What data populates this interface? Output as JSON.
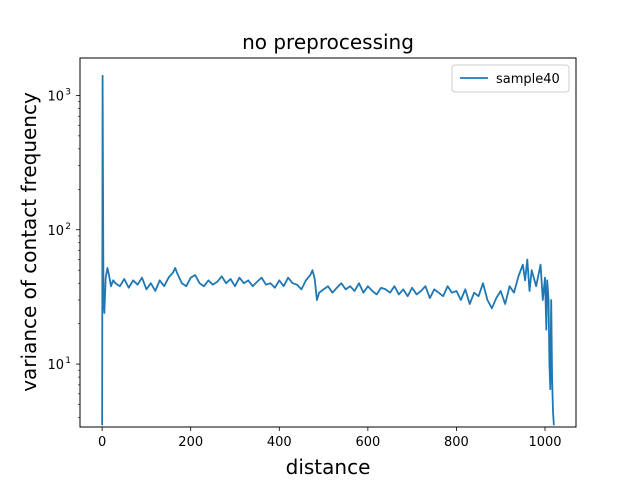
{
  "chart_data": {
    "type": "line",
    "title": "no preprocessing",
    "xlabel": "distance",
    "ylabel": "variance of contact frequency",
    "xlim": [
      -50,
      1070
    ],
    "ylim": [
      3.4,
      1900
    ],
    "yscale": "log",
    "x_ticks": [
      0,
      200,
      400,
      600,
      800,
      1000
    ],
    "x_tick_labels": [
      "0",
      "200",
      "400",
      "600",
      "800",
      "1000"
    ],
    "y_ticks": [
      10,
      100,
      1000
    ],
    "y_tick_labels": [
      "10",
      "10",
      "10"
    ],
    "y_tick_exponents": [
      "1",
      "2",
      "3"
    ],
    "grid": false,
    "legend_position": "top-right",
    "series": [
      {
        "name": "sample40",
        "color": "#1f77b4",
        "x": [
          0,
          1,
          2,
          3,
          5,
          8,
          12,
          16,
          20,
          25,
          30,
          40,
          50,
          60,
          70,
          80,
          90,
          100,
          110,
          120,
          130,
          140,
          150,
          160,
          165,
          170,
          180,
          190,
          200,
          210,
          220,
          230,
          240,
          250,
          260,
          270,
          280,
          290,
          300,
          310,
          320,
          330,
          340,
          350,
          360,
          370,
          380,
          390,
          400,
          410,
          420,
          430,
          440,
          450,
          460,
          470,
          475,
          480,
          485,
          490,
          500,
          510,
          520,
          530,
          540,
          550,
          560,
          570,
          580,
          590,
          600,
          610,
          620,
          630,
          640,
          650,
          660,
          670,
          680,
          690,
          700,
          710,
          720,
          730,
          740,
          750,
          760,
          770,
          780,
          790,
          800,
          810,
          820,
          830,
          840,
          850,
          860,
          870,
          880,
          890,
          900,
          910,
          920,
          930,
          940,
          950,
          955,
          960,
          965,
          970,
          980,
          990,
          995,
          1000,
          1003,
          1005,
          1008,
          1010,
          1012,
          1014,
          1016,
          1018,
          1020
        ],
        "y": [
          3.5,
          1400,
          200,
          30,
          24,
          44,
          52,
          45,
          38,
          42,
          40,
          38,
          43,
          37,
          42,
          39,
          44,
          36,
          40,
          35,
          42,
          38,
          44,
          48,
          52,
          47,
          40,
          38,
          44,
          46,
          40,
          38,
          42,
          39,
          41,
          45,
          40,
          43,
          38,
          44,
          40,
          42,
          38,
          41,
          44,
          39,
          40,
          37,
          42,
          38,
          44,
          40,
          39,
          36,
          42,
          46,
          50,
          43,
          30,
          34,
          36,
          38,
          34,
          37,
          40,
          36,
          38,
          35,
          40,
          34,
          38,
          35,
          33,
          37,
          36,
          34,
          38,
          33,
          36,
          32,
          37,
          33,
          35,
          38,
          31,
          36,
          34,
          32,
          38,
          34,
          35,
          30,
          36,
          28,
          34,
          32,
          40,
          30,
          26,
          31,
          35,
          28,
          38,
          34,
          45,
          55,
          42,
          60,
          35,
          50,
          38,
          55,
          30,
          44,
          18,
          42,
          30,
          10,
          6.5,
          30,
          8,
          4.5,
          3.5
        ]
      }
    ]
  }
}
